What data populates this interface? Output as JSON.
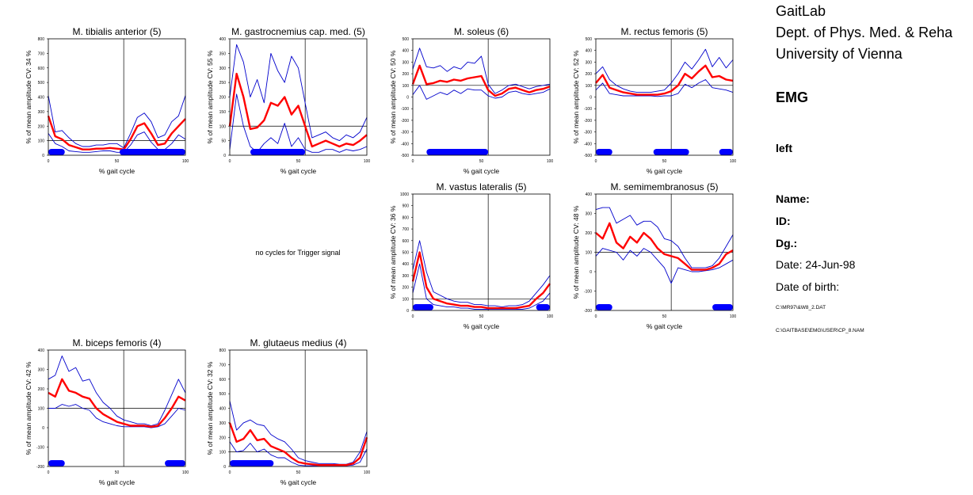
{
  "report": {
    "lab_lines": [
      "GaitLab",
      "Dept. of Phys. Med. & Reha",
      "University of Vienna"
    ],
    "section": "EMG",
    "side": "left",
    "fields": {
      "name_label": "Name:",
      "id_label": "ID:",
      "dg_label": "Dg.:",
      "date": "Date: 24-Jun-98",
      "dob": "Date of birth:"
    },
    "files": [
      "C:\\MR97\\&W8_2.DAT",
      "C:\\GAITBASE\\EMG\\USER\\CP_8.NAM"
    ]
  },
  "empty_panel_text": "no cycles for Trigger signal",
  "colors": {
    "mean": "#ff0000",
    "band": "#0000cc",
    "bar": "#0000ff"
  },
  "chart_data": [
    {
      "type": "line",
      "title": "M. tibialis anterior (5)",
      "ylabel": "% of mean amplitude  CV: 34 %",
      "xlabel": "% gait cycle",
      "xlim": [
        0,
        100
      ],
      "ylim": [
        0,
        800
      ],
      "yticks": [
        0,
        100,
        200,
        300,
        400,
        500,
        600,
        700,
        800
      ],
      "xticks": [
        0,
        50,
        100
      ],
      "ref_line": 100,
      "toe_off": 55,
      "x": [
        0,
        5,
        10,
        15,
        20,
        25,
        30,
        35,
        40,
        45,
        50,
        55,
        60,
        65,
        70,
        75,
        80,
        85,
        90,
        95,
        100
      ],
      "series": [
        {
          "values": [
            270,
            130,
            110,
            70,
            55,
            40,
            40,
            45,
            45,
            50,
            45,
            40,
            110,
            200,
            220,
            150,
            70,
            80,
            150,
            200,
            250
          ]
        },
        {
          "values": [
            410,
            160,
            170,
            120,
            80,
            60,
            60,
            70,
            70,
            80,
            80,
            50,
            150,
            260,
            290,
            230,
            120,
            140,
            230,
            270,
            410
          ]
        },
        {
          "values": [
            150,
            80,
            60,
            30,
            25,
            20,
            20,
            25,
            30,
            30,
            20,
            20,
            70,
            140,
            160,
            90,
            40,
            40,
            80,
            140,
            110
          ]
        }
      ],
      "bars": [
        [
          0,
          12
        ],
        [
          52,
          100
        ]
      ]
    },
    {
      "type": "line",
      "title": "M. gastrocnemius cap. med. (5)",
      "ylabel": "% of mean amplitude  CV: 55 %",
      "xlabel": "% gait cycle",
      "xlim": [
        0,
        100
      ],
      "ylim": [
        0,
        400
      ],
      "yticks": [
        0,
        50,
        100,
        150,
        200,
        250,
        300,
        350,
        400
      ],
      "xticks": [
        0,
        50,
        100
      ],
      "ref_line": 100,
      "toe_off": 55,
      "x": [
        0,
        5,
        10,
        15,
        20,
        25,
        30,
        35,
        40,
        45,
        50,
        55,
        60,
        65,
        70,
        75,
        80,
        85,
        90,
        95,
        100
      ],
      "series": [
        {
          "values": [
            100,
            280,
            200,
            90,
            95,
            120,
            180,
            170,
            200,
            140,
            170,
            100,
            30,
            40,
            50,
            40,
            30,
            40,
            35,
            50,
            70
          ]
        },
        {
          "values": [
            200,
            380,
            320,
            200,
            260,
            180,
            350,
            290,
            250,
            340,
            300,
            180,
            60,
            70,
            80,
            60,
            50,
            70,
            60,
            80,
            130
          ]
        },
        {
          "values": [
            20,
            210,
            100,
            30,
            10,
            40,
            60,
            40,
            110,
            30,
            60,
            20,
            10,
            10,
            20,
            20,
            10,
            20,
            15,
            20,
            30
          ]
        }
      ],
      "bars": [
        [
          15,
          55
        ]
      ]
    },
    {
      "type": "line",
      "title": "M. soleus (6)",
      "ylabel": "% of mean amplitude  CV: 50 %",
      "xlabel": "% gait cycle",
      "xlim": [
        0,
        100
      ],
      "ylim": [
        -500,
        500
      ],
      "yticks": [
        -500,
        -400,
        -300,
        -200,
        -100,
        0,
        100,
        200,
        300,
        400,
        500
      ],
      "xticks": [
        0,
        50,
        100
      ],
      "ref_line": 100,
      "toe_off": 55,
      "x": [
        0,
        5,
        10,
        15,
        20,
        25,
        30,
        35,
        40,
        45,
        50,
        55,
        60,
        65,
        70,
        75,
        80,
        85,
        90,
        95,
        100
      ],
      "series": [
        {
          "values": [
            110,
            270,
            110,
            120,
            140,
            130,
            150,
            140,
            160,
            170,
            180,
            60,
            10,
            30,
            70,
            80,
            60,
            40,
            60,
            70,
            90
          ]
        },
        {
          "values": [
            240,
            420,
            260,
            250,
            270,
            220,
            260,
            240,
            300,
            290,
            350,
            110,
            30,
            60,
            100,
            110,
            90,
            70,
            90,
            100,
            110
          ]
        },
        {
          "values": [
            20,
            100,
            -20,
            10,
            40,
            20,
            60,
            30,
            70,
            60,
            60,
            10,
            -10,
            0,
            40,
            50,
            30,
            20,
            30,
            40,
            70
          ]
        }
      ],
      "bars": [
        [
          10,
          55
        ]
      ]
    },
    {
      "type": "line",
      "title": "M. rectus femoris (5)",
      "ylabel": "% of mean amplitude  CV: 52 %",
      "xlabel": "% gait cycle",
      "xlim": [
        0,
        100
      ],
      "ylim": [
        -500,
        500
      ],
      "yticks": [
        -500,
        -400,
        -300,
        -200,
        -100,
        0,
        100,
        200,
        300,
        400,
        500
      ],
      "xticks": [
        0,
        50,
        100
      ],
      "ref_line": 100,
      "toe_off": 55,
      "x": [
        0,
        5,
        10,
        15,
        20,
        25,
        30,
        35,
        40,
        45,
        50,
        55,
        60,
        65,
        70,
        75,
        80,
        85,
        90,
        95,
        100
      ],
      "series": [
        {
          "values": [
            120,
            190,
            80,
            60,
            40,
            30,
            20,
            20,
            20,
            20,
            30,
            50,
            100,
            200,
            160,
            220,
            270,
            170,
            180,
            150,
            140
          ]
        },
        {
          "values": [
            200,
            260,
            150,
            100,
            70,
            50,
            40,
            40,
            40,
            50,
            60,
            120,
            200,
            300,
            240,
            320,
            410,
            260,
            340,
            250,
            320
          ]
        },
        {
          "values": [
            60,
            120,
            30,
            20,
            10,
            10,
            10,
            10,
            10,
            5,
            10,
            10,
            30,
            110,
            80,
            120,
            150,
            80,
            70,
            60,
            40
          ]
        }
      ],
      "bars": [
        [
          0,
          12
        ],
        [
          42,
          68
        ],
        [
          90,
          100
        ]
      ]
    },
    {
      "type": "line",
      "title": "M. vastus lateralis (5)",
      "ylabel": "% of mean amplitude  CV: 36 %",
      "xlabel": "% gait cycle",
      "xlim": [
        0,
        100
      ],
      "ylim": [
        0,
        1000
      ],
      "yticks": [
        0,
        100,
        200,
        300,
        400,
        500,
        600,
        700,
        800,
        900,
        1000
      ],
      "xticks": [
        0,
        50,
        100
      ],
      "ref_line": 100,
      "toe_off": 55,
      "x": [
        0,
        5,
        10,
        15,
        20,
        25,
        30,
        35,
        40,
        45,
        50,
        55,
        60,
        65,
        70,
        75,
        80,
        85,
        90,
        95,
        100
      ],
      "series": [
        {
          "values": [
            250,
            500,
            200,
            100,
            80,
            60,
            50,
            40,
            40,
            30,
            30,
            20,
            20,
            20,
            20,
            20,
            30,
            40,
            100,
            150,
            230
          ]
        },
        {
          "values": [
            350,
            600,
            330,
            160,
            130,
            100,
            80,
            70,
            70,
            50,
            50,
            40,
            40,
            30,
            40,
            40,
            50,
            80,
            150,
            220,
            300
          ]
        },
        {
          "values": [
            150,
            400,
            100,
            50,
            40,
            30,
            30,
            20,
            20,
            10,
            10,
            10,
            10,
            10,
            10,
            10,
            10,
            20,
            50,
            80,
            150
          ]
        }
      ],
      "bars": [
        [
          0,
          15
        ],
        [
          90,
          100
        ]
      ]
    },
    {
      "type": "line",
      "title": "M. semimembranosus (5)",
      "ylabel": "% of mean amplitude  CV: 48 %",
      "xlabel": "% gait cycle",
      "xlim": [
        0,
        100
      ],
      "ylim": [
        -200,
        400
      ],
      "yticks": [
        -200,
        -100,
        0,
        100,
        200,
        300,
        400
      ],
      "xticks": [
        0,
        50,
        100
      ],
      "ref_line": 100,
      "toe_off": 55,
      "x": [
        0,
        5,
        10,
        15,
        20,
        25,
        30,
        35,
        40,
        45,
        50,
        55,
        60,
        65,
        70,
        75,
        80,
        85,
        90,
        95,
        100
      ],
      "series": [
        {
          "values": [
            200,
            170,
            250,
            150,
            120,
            180,
            150,
            200,
            170,
            120,
            90,
            80,
            70,
            40,
            10,
            10,
            10,
            20,
            40,
            90,
            110
          ]
        },
        {
          "values": [
            320,
            330,
            330,
            250,
            270,
            290,
            240,
            260,
            260,
            230,
            170,
            160,
            130,
            70,
            20,
            20,
            20,
            30,
            70,
            130,
            190
          ]
        },
        {
          "values": [
            80,
            120,
            110,
            100,
            60,
            110,
            80,
            120,
            100,
            60,
            20,
            -60,
            20,
            10,
            0,
            0,
            5,
            10,
            20,
            40,
            60
          ]
        }
      ],
      "bars": [
        [
          0,
          12
        ],
        [
          85,
          100
        ]
      ]
    },
    {
      "type": "line",
      "title": "M. biceps femoris (4)",
      "ylabel": "% of mean amplitude  CV: 42 %",
      "xlabel": "% gait cycle",
      "xlim": [
        0,
        100
      ],
      "ylim": [
        -200,
        400
      ],
      "yticks": [
        -200,
        -100,
        0,
        100,
        200,
        300,
        400
      ],
      "xticks": [
        0,
        50,
        100
      ],
      "ref_line": 100,
      "toe_off": 55,
      "x": [
        0,
        5,
        10,
        15,
        20,
        25,
        30,
        35,
        40,
        45,
        50,
        55,
        60,
        65,
        70,
        75,
        80,
        85,
        90,
        95,
        100
      ],
      "series": [
        {
          "values": [
            180,
            160,
            250,
            190,
            180,
            160,
            150,
            100,
            70,
            50,
            30,
            20,
            10,
            10,
            10,
            5,
            10,
            50,
            100,
            160,
            140
          ]
        },
        {
          "values": [
            250,
            270,
            370,
            290,
            310,
            240,
            250,
            180,
            130,
            100,
            60,
            40,
            30,
            20,
            20,
            10,
            20,
            90,
            170,
            250,
            180
          ]
        },
        {
          "values": [
            100,
            100,
            120,
            110,
            120,
            100,
            90,
            50,
            30,
            20,
            10,
            5,
            5,
            5,
            5,
            0,
            5,
            20,
            60,
            100,
            90
          ]
        }
      ],
      "bars": [
        [
          0,
          12
        ],
        [
          85,
          100
        ]
      ]
    },
    {
      "type": "line",
      "title": "M. glutaeus medius (4)",
      "ylabel": "% of mean amplitude  CV: 32 %",
      "xlabel": "% gait cycle",
      "xlim": [
        0,
        100
      ],
      "ylim": [
        0,
        800
      ],
      "yticks": [
        0,
        100,
        200,
        300,
        400,
        500,
        600,
        700,
        800
      ],
      "xticks": [
        0,
        50,
        100
      ],
      "ref_line": 100,
      "toe_off": 55,
      "x": [
        0,
        5,
        10,
        15,
        20,
        25,
        30,
        35,
        40,
        45,
        50,
        55,
        60,
        65,
        70,
        75,
        80,
        85,
        90,
        95,
        100
      ],
      "series": [
        {
          "values": [
            300,
            170,
            190,
            250,
            180,
            190,
            140,
            120,
            100,
            60,
            30,
            20,
            15,
            10,
            10,
            10,
            10,
            10,
            20,
            60,
            200
          ]
        },
        {
          "values": [
            450,
            250,
            300,
            320,
            290,
            280,
            220,
            190,
            170,
            120,
            60,
            40,
            30,
            20,
            20,
            20,
            15,
            15,
            30,
            100,
            240
          ]
        },
        {
          "values": [
            170,
            100,
            110,
            160,
            100,
            120,
            80,
            60,
            60,
            30,
            10,
            5,
            5,
            5,
            5,
            5,
            5,
            5,
            10,
            30,
            120
          ]
        }
      ],
      "bars": [
        [
          0,
          32
        ]
      ]
    }
  ]
}
